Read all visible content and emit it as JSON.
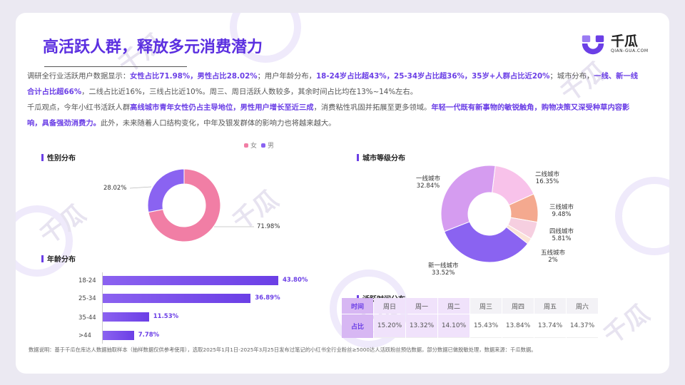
{
  "header": {
    "title": "高活跃人群，释放多元消费潜力"
  },
  "logo": {
    "name": "千瓜",
    "domain": "QIAN-GUA.COM"
  },
  "intro": {
    "p1": [
      {
        "t": "调研全行业活跃用户数据显示：",
        "hl": false
      },
      {
        "t": "女性占比71.98%，男性占比28.02%",
        "hl": true
      },
      {
        "t": "；用户年龄分布，",
        "hl": false
      },
      {
        "t": "18-24岁占比超43%，25-34岁占比超36%，35岁+人群占比近20%",
        "hl": true
      },
      {
        "t": "；城市分布，",
        "hl": false
      },
      {
        "t": "一线、新一线合计占比超66%",
        "hl": true
      },
      {
        "t": "，二线占比近16%，三线占比近10%。周三、周日活跃人数较多，其余时间占比均在13%~14%左右。",
        "hl": false
      }
    ],
    "p2": [
      {
        "t": "千瓜观点，今年小红书活跃人群",
        "hl": false
      },
      {
        "t": "高线城市青年女性仍占主导地位，男性用户增长至近三成",
        "hl": true
      },
      {
        "t": "，消费粘性巩固并拓展至更多领域。",
        "hl": false
      },
      {
        "t": "年轻一代既有新事物的敏锐触角，购物决策又深受种草内容影响，具备强劲消费力。",
        "hl": true
      },
      {
        "t": "此外，未来随着人口结构变化，中年及银发群体的影响力也将越来越大。",
        "hl": false
      }
    ]
  },
  "sections": {
    "gender": "性别分布",
    "age": "年龄分布",
    "city": "城市等级分布",
    "active_time": "活跃时间分布"
  },
  "colors": {
    "accent": "#6b3fe6",
    "female": "#f17ea5",
    "male": "#8a63f1"
  },
  "chart_data": [
    {
      "type": "pie",
      "title": "性别分布",
      "categories": [
        "女",
        "男"
      ],
      "values": [
        71.98,
        28.02
      ],
      "labels": [
        "71.98%",
        "28.02%"
      ],
      "colors": [
        "#f17ea5",
        "#8a63f1"
      ],
      "legend": "top-right"
    },
    {
      "type": "bar",
      "orientation": "horizontal",
      "title": "年龄分布",
      "categories": [
        "18-24",
        "25-34",
        "35-44",
        ">44"
      ],
      "values": [
        43.8,
        36.89,
        11.53,
        7.78
      ],
      "labels": [
        "43.80%",
        "36.89%",
        "11.53%",
        "7.78%"
      ],
      "xlim": [
        0,
        50
      ]
    },
    {
      "type": "pie",
      "title": "城市等级分布",
      "categories": [
        "一线城市",
        "二线城市",
        "三线城市",
        "四线城市",
        "五线城市",
        "新一线城市"
      ],
      "values": [
        32.84,
        16.35,
        9.48,
        5.81,
        2,
        33.52
      ],
      "labels": [
        "32.84%",
        "16.35%",
        "9.48%",
        "5.81%",
        "2%",
        "33.52%"
      ],
      "colors": [
        "#d59cf0",
        "#f8c2ea",
        "#f4a98f",
        "#f6cfe0",
        "#fbe3d8",
        "#8a63f1"
      ]
    },
    {
      "type": "table",
      "title": "活跃时间分布",
      "row_headers": [
        "时间",
        "占比"
      ],
      "columns": [
        "周日",
        "周一",
        "周二",
        "周三",
        "周四",
        "周五",
        "周六"
      ],
      "values": [
        "15.20%",
        "13.32%",
        "14.10%",
        "15.43%",
        "13.84%",
        "13.74%",
        "14.37%"
      ],
      "highlight": [
        0,
        1,
        2
      ]
    }
  ],
  "footer": "数据说明：基于千瓜在库达人数据抽取样本（抽样数据仅供参考使用），选取2025年1月1日-2025年3月25日发布过笔记的小红书全行业粉丝≥5000达人活跃粉丝预估数据，部分数据已做脱敏处理，数据来源：千瓜数据。"
}
